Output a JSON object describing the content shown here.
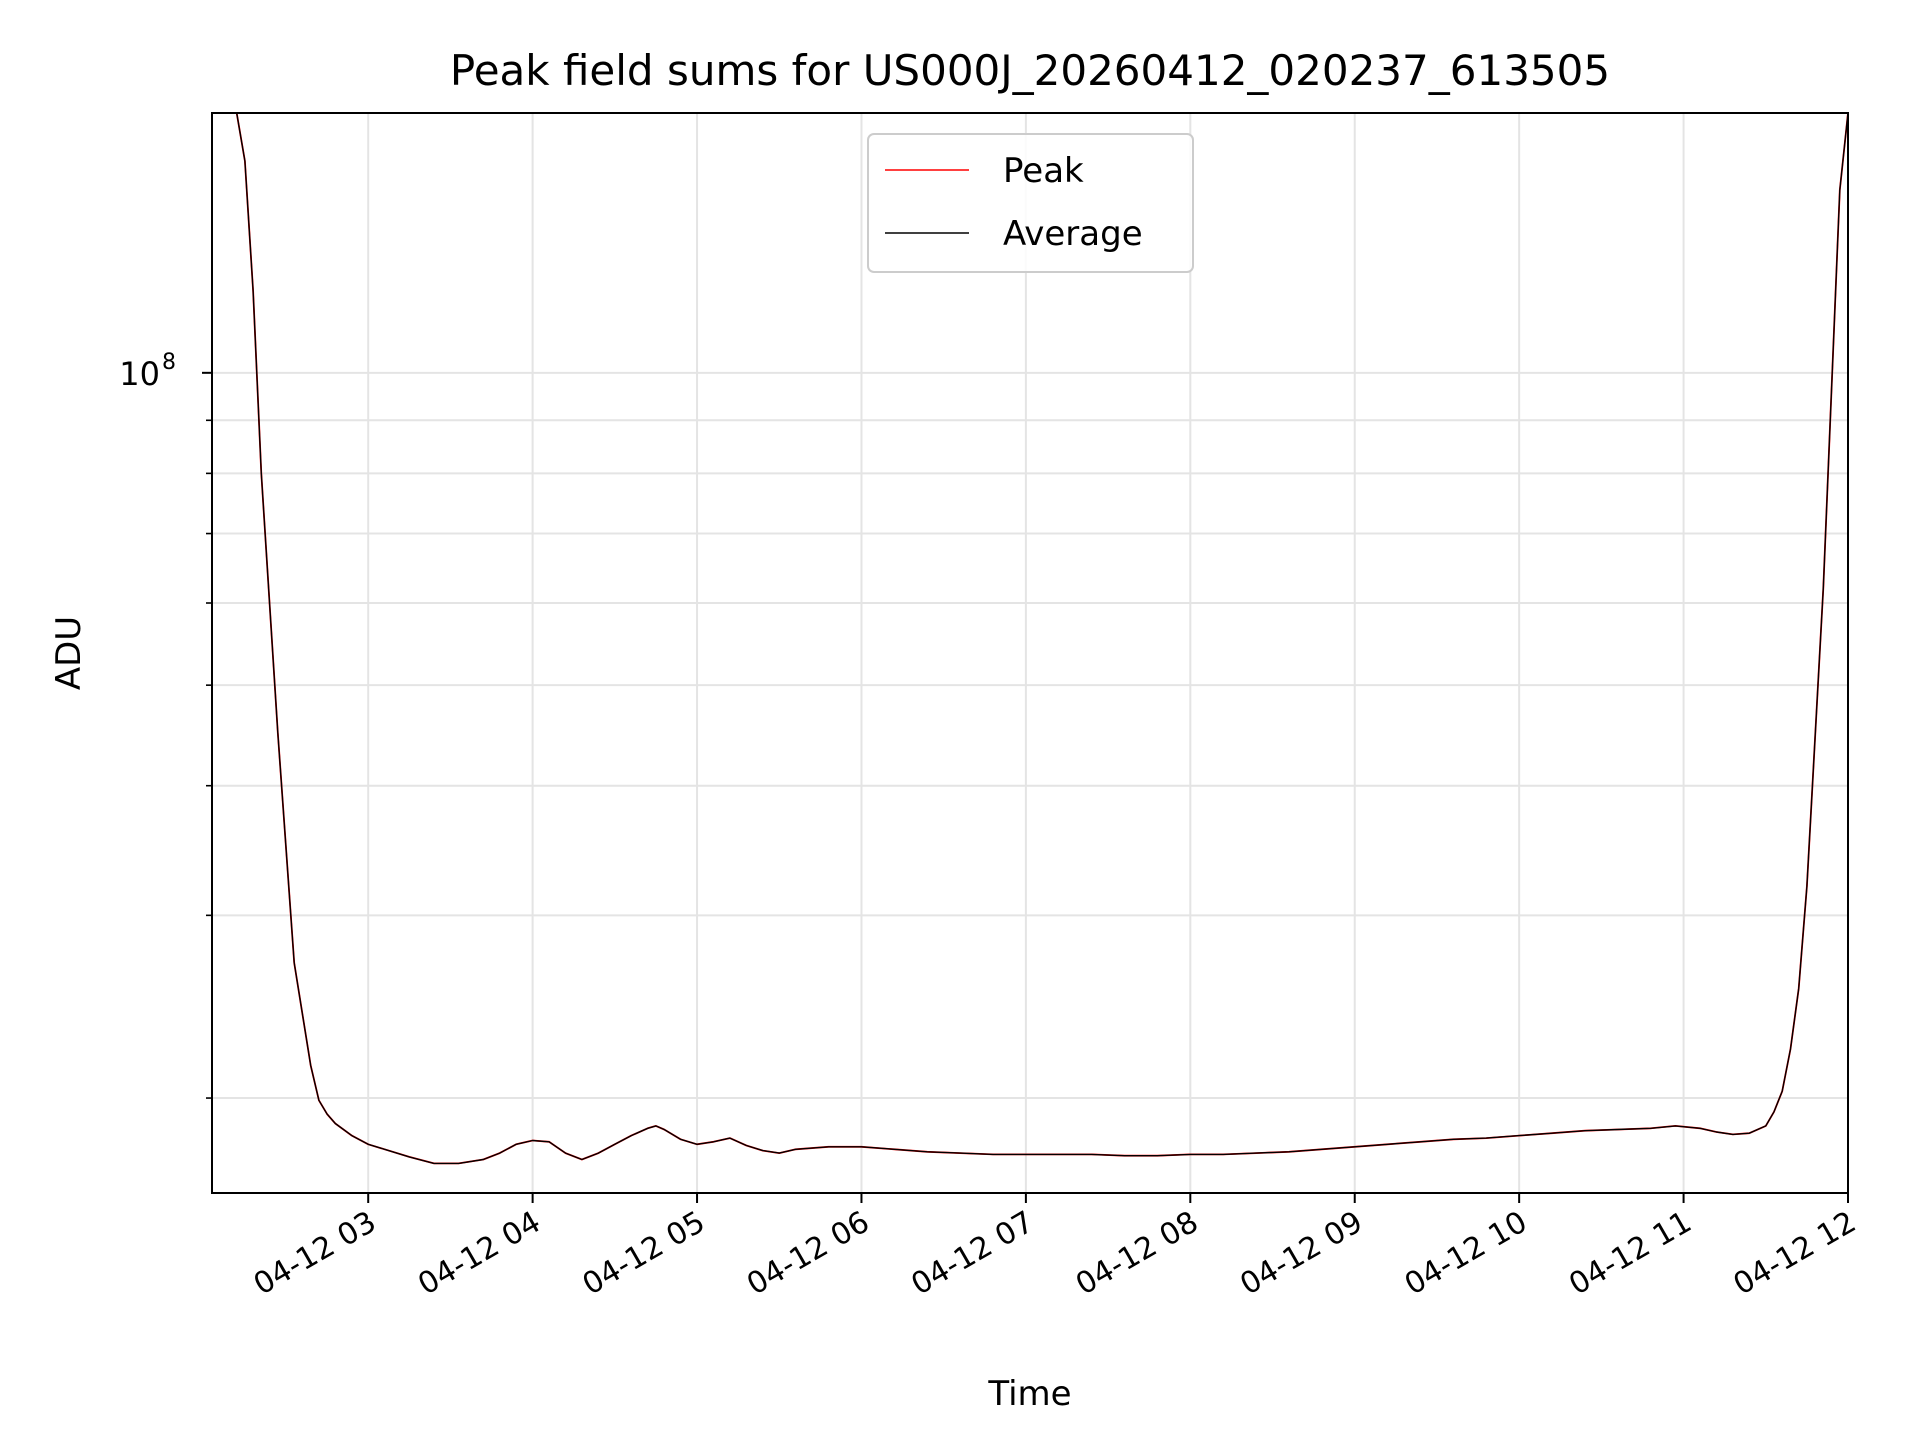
{
  "chart_data": {
    "type": "line",
    "title": "Peak field sums for US000J_20260412_020237_613505",
    "xlabel": "Time",
    "ylabel": "ADU",
    "yscale": "log",
    "xlim": [
      2.05,
      12.0
    ],
    "ylim": [
      16200000,
      178000000
    ],
    "grid": true,
    "legend_position": "top-center",
    "x_tick_values": [
      3,
      4,
      5,
      6,
      7,
      8,
      9,
      10,
      11,
      12
    ],
    "x_tick_labels": [
      "04-12 03",
      "04-12 04",
      "04-12 05",
      "04-12 06",
      "04-12 07",
      "04-12 08",
      "04-12 09",
      "04-12 10",
      "04-12 11",
      "04-12 12"
    ],
    "y_major_ticks": [
      {
        "value": 100000000,
        "base": "10",
        "exponent": "8"
      }
    ],
    "y_minor_ticks": [
      20000000,
      30000000,
      40000000,
      50000000,
      60000000,
      70000000,
      80000000,
      90000000,
      200000000
    ],
    "series": [
      {
        "name": "Peak",
        "color": "#ff0000",
        "x": [
          2.05,
          2.2,
          2.25,
          2.3,
          2.35,
          2.45,
          2.55,
          2.65,
          2.7,
          2.75,
          2.8,
          2.9,
          3.0,
          3.1,
          3.25,
          3.4,
          3.55,
          3.7,
          3.8,
          3.9,
          4.0,
          4.1,
          4.2,
          4.3,
          4.4,
          4.5,
          4.6,
          4.7,
          4.75,
          4.8,
          4.9,
          5.0,
          5.1,
          5.2,
          5.3,
          5.4,
          5.5,
          5.6,
          5.8,
          6.0,
          6.2,
          6.4,
          6.6,
          6.8,
          7.0,
          7.2,
          7.4,
          7.6,
          7.8,
          8.0,
          8.2,
          8.4,
          8.6,
          8.8,
          9.0,
          9.2,
          9.4,
          9.6,
          9.8,
          10.0,
          10.2,
          10.4,
          10.6,
          10.8,
          10.95,
          11.1,
          11.2,
          11.3,
          11.4,
          11.5,
          11.55,
          11.6,
          11.65,
          11.7,
          11.75,
          11.85,
          11.95,
          12.0
        ],
        "y": [
          178000000,
          178000000,
          160000000,
          120000000,
          80000000,
          45000000,
          27000000,
          21500000,
          19900000,
          19300000,
          18900000,
          18400000,
          18050000,
          17850000,
          17550000,
          17300000,
          17300000,
          17450000,
          17700000,
          18050000,
          18200000,
          18150000,
          17700000,
          17450000,
          17700000,
          18050000,
          18400000,
          18700000,
          18800000,
          18650000,
          18250000,
          18050000,
          18150000,
          18300000,
          18000000,
          17800000,
          17700000,
          17850000,
          17950000,
          17950000,
          17850000,
          17750000,
          17700000,
          17650000,
          17650000,
          17650000,
          17650000,
          17600000,
          17600000,
          17650000,
          17650000,
          17700000,
          17750000,
          17850000,
          17950000,
          18050000,
          18150000,
          18250000,
          18300000,
          18400000,
          18500000,
          18600000,
          18650000,
          18700000,
          18800000,
          18700000,
          18550000,
          18450000,
          18500000,
          18800000,
          19400000,
          20300000,
          22300000,
          25500000,
          32000000,
          62000000,
          150000000,
          178000000
        ]
      },
      {
        "name": "Average",
        "color": "#000000",
        "x": [
          2.05,
          2.2,
          2.25,
          2.3,
          2.35,
          2.45,
          2.55,
          2.65,
          2.7,
          2.75,
          2.8,
          2.9,
          3.0,
          3.1,
          3.25,
          3.4,
          3.55,
          3.7,
          3.8,
          3.9,
          4.0,
          4.1,
          4.2,
          4.3,
          4.4,
          4.5,
          4.6,
          4.7,
          4.75,
          4.8,
          4.9,
          5.0,
          5.1,
          5.2,
          5.3,
          5.4,
          5.5,
          5.6,
          5.8,
          6.0,
          6.2,
          6.4,
          6.6,
          6.8,
          7.0,
          7.2,
          7.4,
          7.6,
          7.8,
          8.0,
          8.2,
          8.4,
          8.6,
          8.8,
          9.0,
          9.2,
          9.4,
          9.6,
          9.8,
          10.0,
          10.2,
          10.4,
          10.6,
          10.8,
          10.95,
          11.1,
          11.2,
          11.3,
          11.4,
          11.5,
          11.55,
          11.6,
          11.65,
          11.7,
          11.75,
          11.85,
          11.95,
          12.0
        ],
        "y": [
          178000000,
          178000000,
          160000000,
          120000000,
          80000000,
          45000000,
          27000000,
          21500000,
          19900000,
          19300000,
          18900000,
          18400000,
          18050000,
          17850000,
          17550000,
          17300000,
          17300000,
          17450000,
          17700000,
          18050000,
          18200000,
          18150000,
          17700000,
          17450000,
          17700000,
          18050000,
          18400000,
          18700000,
          18800000,
          18650000,
          18250000,
          18050000,
          18150000,
          18300000,
          18000000,
          17800000,
          17700000,
          17850000,
          17950000,
          17950000,
          17850000,
          17750000,
          17700000,
          17650000,
          17650000,
          17650000,
          17650000,
          17600000,
          17600000,
          17650000,
          17650000,
          17700000,
          17750000,
          17850000,
          17950000,
          18050000,
          18150000,
          18250000,
          18300000,
          18400000,
          18500000,
          18600000,
          18650000,
          18700000,
          18800000,
          18700000,
          18550000,
          18450000,
          18500000,
          18800000,
          19400000,
          20300000,
          22300000,
          25500000,
          32000000,
          62000000,
          150000000,
          178000000
        ]
      }
    ]
  }
}
